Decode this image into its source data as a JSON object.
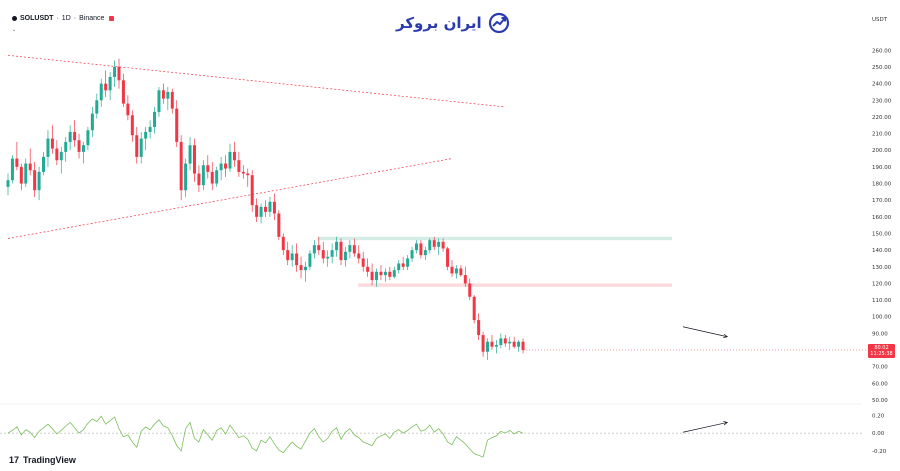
{
  "header": {
    "symbol": "SOLUSDT",
    "interval": "1D",
    "exchange": "Binance",
    "separator": "·",
    "collapse_caret": "⌄",
    "indicator_label": "",
    "live_indicator_color": "#f23645"
  },
  "brand": {
    "logo_text": "ایران بروکر",
    "logo_color": "#2a3bb0",
    "icon": "growth-chart-icon"
  },
  "watermark": {
    "text": "TradingView",
    "icon": "tradingview-logo-icon",
    "mark_text": "17"
  },
  "price_axis": {
    "unit": "USDT",
    "ticks": [
      "260.00",
      "250.00",
      "240.00",
      "230.00",
      "220.00",
      "210.00",
      "200.00",
      "190.00",
      "180.00",
      "170.00",
      "160.00",
      "150.00",
      "140.00",
      "130.00",
      "120.00",
      "110.00",
      "100.00",
      "90.00",
      "80.00",
      "70.00",
      "60.00",
      "50.00"
    ]
  },
  "oscillator_axis": {
    "ticks": [
      "0.20",
      "0.00",
      "-0.20"
    ]
  },
  "last_price": {
    "value": "80.02",
    "countdown": "11:25:38",
    "color": "#f23645"
  },
  "colors": {
    "up": "#22ab94",
    "down": "#f23645",
    "trendline": "#f23645",
    "resistance_zone": "#d3ede6",
    "support_zone": "#fbd9dc",
    "oscillator_line": "#7cbf5c",
    "annotation_arrow": "#131722"
  },
  "chart_data": {
    "type": "candlestick",
    "symbol": "SOLUSDT",
    "interval": "1D",
    "ylim": [
      50,
      265
    ],
    "grid": false,
    "candles": [
      [
        178,
        186,
        173,
        182
      ],
      [
        182,
        197,
        180,
        195
      ],
      [
        195,
        205,
        188,
        190
      ],
      [
        190,
        192,
        176,
        180
      ],
      [
        180,
        195,
        178,
        192
      ],
      [
        192,
        201,
        185,
        188
      ],
      [
        188,
        193,
        172,
        176
      ],
      [
        176,
        190,
        170,
        187
      ],
      [
        187,
        199,
        185,
        196
      ],
      [
        196,
        212,
        190,
        207
      ],
      [
        207,
        215,
        198,
        201
      ],
      [
        201,
        206,
        191,
        194
      ],
      [
        194,
        202,
        186,
        199
      ],
      [
        199,
        208,
        193,
        205
      ],
      [
        205,
        215,
        200,
        211
      ],
      [
        211,
        218,
        202,
        206
      ],
      [
        206,
        210,
        195,
        199
      ],
      [
        199,
        205,
        192,
        203
      ],
      [
        203,
        214,
        200,
        212
      ],
      [
        212,
        226,
        208,
        222
      ],
      [
        222,
        234,
        219,
        230
      ],
      [
        230,
        243,
        226,
        240
      ],
      [
        240,
        248,
        232,
        236
      ],
      [
        236,
        247,
        230,
        244
      ],
      [
        244,
        254,
        238,
        250
      ],
      [
        250,
        255,
        237,
        242
      ],
      [
        242,
        246,
        226,
        228
      ],
      [
        228,
        233,
        218,
        221
      ],
      [
        221,
        224,
        205,
        209
      ],
      [
        209,
        214,
        192,
        196
      ],
      [
        196,
        211,
        192,
        207
      ],
      [
        207,
        214,
        200,
        211
      ],
      [
        211,
        218,
        207,
        214
      ],
      [
        214,
        226,
        210,
        223
      ],
      [
        223,
        238,
        220,
        236
      ],
      [
        236,
        240,
        228,
        231
      ],
      [
        231,
        238,
        224,
        235
      ],
      [
        235,
        237,
        222,
        225
      ],
      [
        225,
        230,
        202,
        205
      ],
      [
        205,
        209,
        170,
        176
      ],
      [
        176,
        195,
        172,
        192
      ],
      [
        192,
        208,
        188,
        203
      ],
      [
        203,
        207,
        181,
        186
      ],
      [
        186,
        191,
        175,
        179
      ],
      [
        179,
        194,
        176,
        191
      ],
      [
        191,
        197,
        183,
        187
      ],
      [
        187,
        193,
        176,
        180
      ],
      [
        180,
        190,
        178,
        188
      ],
      [
        188,
        196,
        182,
        192
      ],
      [
        192,
        197,
        184,
        189
      ],
      [
        189,
        204,
        187,
        199
      ],
      [
        199,
        205,
        190,
        194
      ],
      [
        194,
        199,
        184,
        187
      ],
      [
        187,
        191,
        183,
        186
      ],
      [
        186,
        189,
        178,
        185
      ],
      [
        185,
        188,
        163,
        167
      ],
      [
        167,
        171,
        157,
        160
      ],
      [
        160,
        168,
        156,
        166
      ],
      [
        166,
        170,
        160,
        163
      ],
      [
        163,
        172,
        160,
        169
      ],
      [
        169,
        174,
        158,
        162
      ],
      [
        162,
        164,
        146,
        148
      ],
      [
        148,
        150,
        137,
        140
      ],
      [
        140,
        145,
        131,
        134
      ],
      [
        134,
        143,
        130,
        138
      ],
      [
        138,
        144,
        127,
        131
      ],
      [
        131,
        136,
        123,
        128
      ],
      [
        128,
        133,
        121,
        130
      ],
      [
        130,
        140,
        128,
        138
      ],
      [
        138,
        146,
        135,
        143
      ],
      [
        143,
        148,
        137,
        140
      ],
      [
        140,
        145,
        132,
        135
      ],
      [
        135,
        140,
        130,
        136
      ],
      [
        136,
        144,
        132,
        140
      ],
      [
        140,
        148,
        136,
        145
      ],
      [
        145,
        147,
        131,
        134
      ],
      [
        134,
        142,
        130,
        139
      ],
      [
        139,
        146,
        135,
        143
      ],
      [
        143,
        147,
        136,
        138
      ],
      [
        138,
        143,
        132,
        135
      ],
      [
        135,
        139,
        127,
        130
      ],
      [
        130,
        135,
        124,
        127
      ],
      [
        127,
        132,
        119,
        122
      ],
      [
        122,
        129,
        118,
        127
      ],
      [
        127,
        131,
        122,
        125
      ],
      [
        125,
        129,
        121,
        127
      ],
      [
        127,
        130,
        122,
        124
      ],
      [
        124,
        130,
        123,
        128
      ],
      [
        128,
        134,
        126,
        132
      ],
      [
        132,
        136,
        128,
        130
      ],
      [
        130,
        137,
        128,
        135
      ],
      [
        135,
        142,
        133,
        140
      ],
      [
        140,
        146,
        138,
        144
      ],
      [
        144,
        146,
        135,
        137
      ],
      [
        137,
        142,
        134,
        140
      ],
      [
        140,
        147,
        138,
        146
      ],
      [
        146,
        148,
        140,
        142
      ],
      [
        142,
        147,
        137,
        145
      ],
      [
        145,
        147,
        139,
        141
      ],
      [
        141,
        142,
        128,
        130
      ],
      [
        130,
        134,
        124,
        126
      ],
      [
        126,
        131,
        123,
        129
      ],
      [
        129,
        131,
        124,
        125
      ],
      [
        125,
        130,
        118,
        120
      ],
      [
        120,
        123,
        110,
        112
      ],
      [
        112,
        113,
        96,
        98
      ],
      [
        98,
        102,
        86,
        89
      ],
      [
        89,
        91,
        76,
        79
      ],
      [
        79,
        87,
        74,
        85
      ],
      [
        85,
        89,
        80,
        82
      ],
      [
        82,
        86,
        78,
        83
      ],
      [
        83,
        90,
        81,
        87
      ],
      [
        87,
        89,
        82,
        84
      ],
      [
        84,
        88,
        80,
        85
      ],
      [
        85,
        88,
        81,
        82
      ],
      [
        82,
        86,
        79,
        85
      ],
      [
        85,
        87,
        78,
        80
      ]
    ],
    "oscillator": [
      0.0,
      0.03,
      0.07,
      -0.02,
      0.04,
      0.01,
      -0.05,
      0.02,
      0.06,
      0.1,
      0.05,
      -0.01,
      0.03,
      0.08,
      0.12,
      0.06,
      0.0,
      0.04,
      0.11,
      0.16,
      0.13,
      0.19,
      0.1,
      0.14,
      0.18,
      0.05,
      -0.04,
      -0.02,
      -0.1,
      -0.16,
      0.02,
      0.07,
      0.04,
      0.1,
      0.15,
      0.08,
      0.06,
      -0.03,
      -0.14,
      -0.2,
      0.05,
      0.12,
      -0.06,
      -0.1,
      0.04,
      -0.02,
      -0.08,
      0.03,
      0.06,
      -0.01,
      0.09,
      0.02,
      -0.05,
      -0.03,
      -0.07,
      -0.17,
      -0.2,
      -0.08,
      -0.11,
      -0.04,
      -0.12,
      -0.19,
      -0.22,
      -0.16,
      -0.1,
      -0.15,
      -0.18,
      -0.09,
      0.0,
      0.05,
      -0.04,
      -0.1,
      -0.06,
      0.02,
      0.06,
      -0.07,
      0.01,
      0.05,
      -0.02,
      -0.05,
      -0.1,
      -0.12,
      -0.14,
      -0.06,
      -0.03,
      -0.01,
      -0.06,
      0.01,
      0.04,
      0.0,
      0.03,
      0.07,
      0.1,
      0.02,
      0.04,
      0.09,
      0.01,
      0.05,
      -0.01,
      -0.1,
      -0.13,
      -0.04,
      -0.08,
      -0.12,
      -0.18,
      -0.23,
      -0.25,
      -0.27,
      -0.08,
      -0.05,
      -0.03,
      0.02,
      0.0,
      0.03,
      -0.01,
      0.02,
      0.0
    ],
    "osc_ylim": [
      -0.28,
      0.26
    ],
    "zones": [
      {
        "name": "resistance",
        "low": 146,
        "high": 148
      },
      {
        "name": "support",
        "low": 118,
        "high": 120
      }
    ],
    "trendlines": [
      {
        "name": "upper",
        "from": {
          "bar": 0,
          "price": 257
        },
        "to": {
          "bar": 112,
          "price": 226
        }
      },
      {
        "name": "lower",
        "from": {
          "bar": 0,
          "price": 147
        },
        "to": {
          "bar": 100,
          "price": 195
        }
      }
    ],
    "annotations": [
      {
        "name": "price-arrow",
        "from": {
          "bar": 152,
          "price": 94
        },
        "to": {
          "bar": 162,
          "price": 88
        }
      },
      {
        "name": "osc-arrow",
        "from": {
          "bar": 152,
          "osc": 0.01
        },
        "to": {
          "bar": 162,
          "osc": 0.12
        }
      }
    ]
  }
}
